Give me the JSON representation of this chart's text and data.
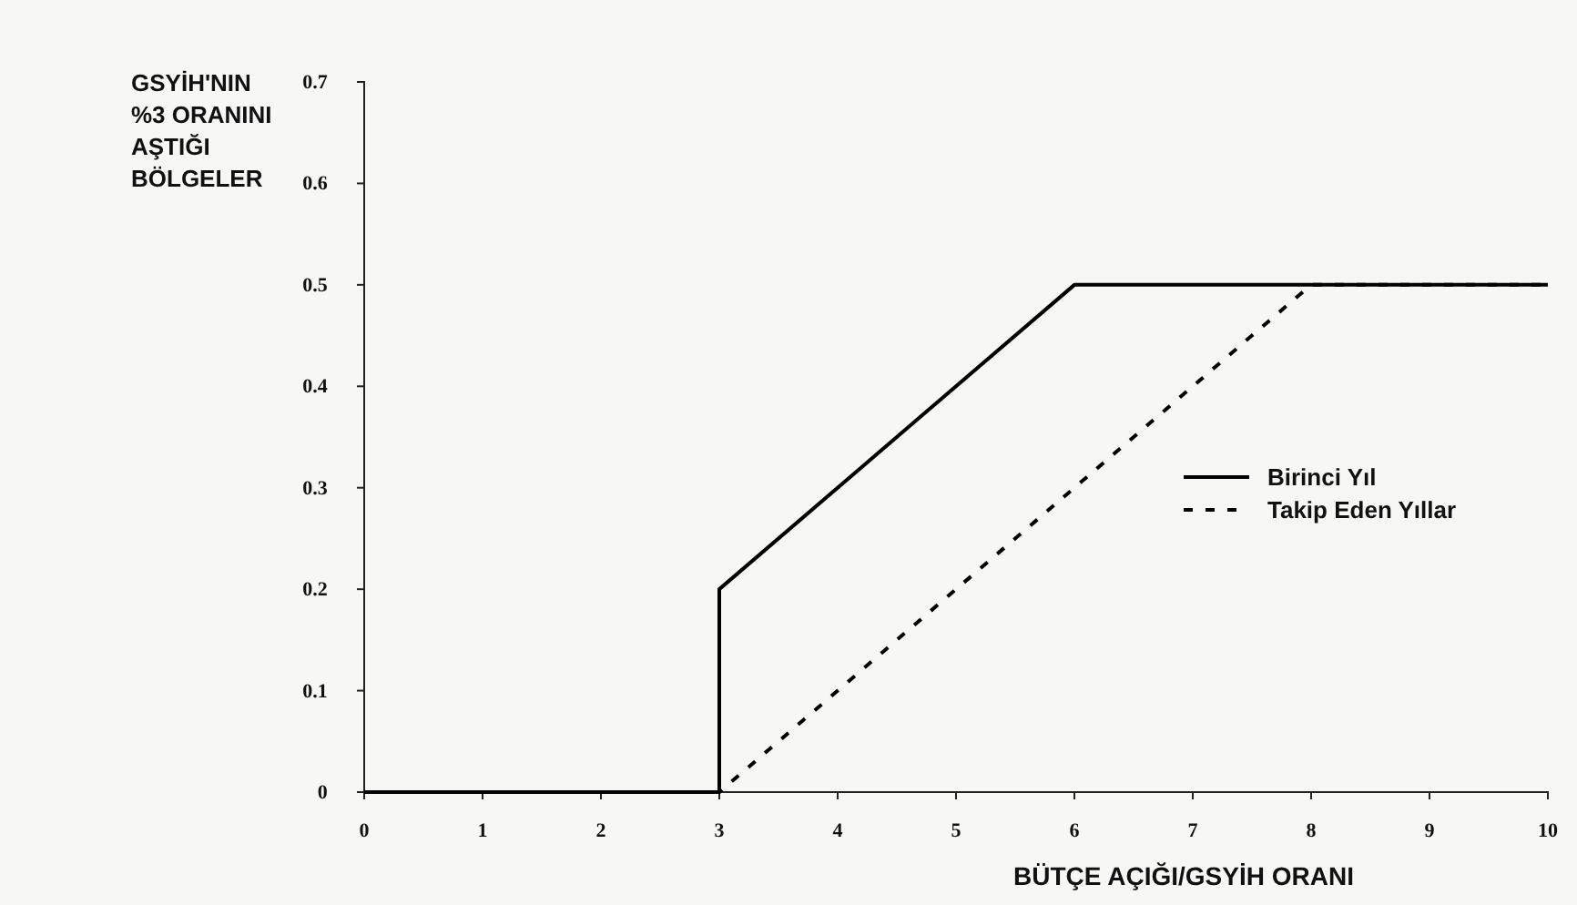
{
  "chart_data": {
    "type": "line",
    "xlabel": "BÜTÇE AÇIĞI/GSYİH ORANI",
    "ylabel": "GSYİH'NIN %3 ORANINI AŞTIĞI BÖLGELER",
    "xlim": [
      0,
      10
    ],
    "xticks": [
      0,
      1,
      2,
      3,
      4,
      5,
      6,
      7,
      8,
      9,
      10
    ],
    "ylim": [
      0,
      0.7
    ],
    "yticks": [
      0,
      0.1,
      0.2,
      0.3,
      0.4,
      0.5,
      0.6,
      0.7
    ],
    "grid": false,
    "legend": "right",
    "series": [
      {
        "name": "Birinci Yıl",
        "color": "#000000",
        "line_style": "solid",
        "x": [
          0,
          3,
          3,
          6,
          10
        ],
        "values": [
          0,
          0,
          0.2,
          0.5,
          0.5
        ]
      },
      {
        "name": "Takip Eden Yıllar",
        "color": "#000000",
        "line_style": "dashed",
        "x": [
          0,
          3,
          8,
          10
        ],
        "values": [
          0,
          0,
          0.5,
          0.5
        ]
      }
    ]
  }
}
